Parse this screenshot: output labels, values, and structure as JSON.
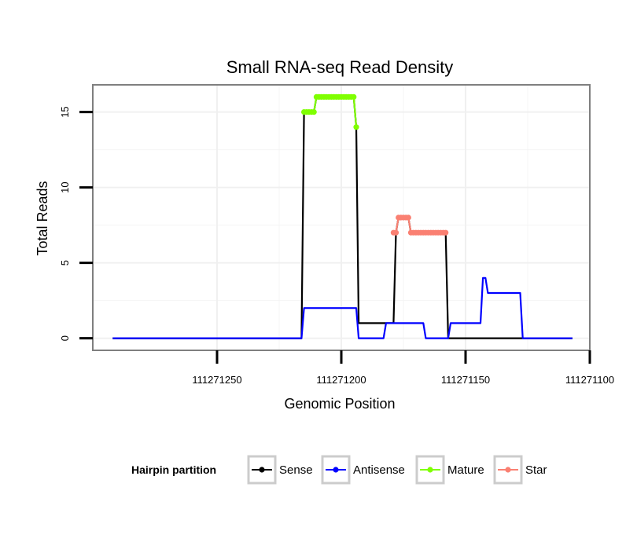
{
  "chart_data": {
    "type": "line",
    "title": "Small RNA-seq Read Density",
    "xlabel": "Genomic Position",
    "ylabel": "Total Reads",
    "x_reversed": true,
    "xlim": [
      111271300,
      111271100
    ],
    "ylim": [
      -0.8,
      16.8
    ],
    "grid": true,
    "x_ticks": [
      {
        "value": 111271250,
        "label": "111271250"
      },
      {
        "value": 111271200,
        "label": "111271200"
      },
      {
        "value": 111271150,
        "label": "111271150"
      },
      {
        "value": 111271100,
        "label": "111271100"
      }
    ],
    "y_ticks": [
      {
        "value": 0,
        "label": "0"
      },
      {
        "value": 5,
        "label": "5"
      },
      {
        "value": 10,
        "label": "10"
      },
      {
        "value": 15,
        "label": "15"
      }
    ],
    "legend": {
      "title": "Hairpin partition",
      "position": "bottom",
      "entries": [
        {
          "name": "Sense",
          "color": "#000000"
        },
        {
          "name": "Antisense",
          "color": "#0000ff"
        },
        {
          "name": "Mature",
          "color": "#7fff00"
        },
        {
          "name": "Star",
          "color": "#fa8072"
        }
      ]
    },
    "series": [
      {
        "name": "Sense",
        "color": "#000000",
        "points": [
          [
            111271292,
            0
          ],
          [
            111271216,
            0
          ],
          [
            111271215,
            15
          ],
          [
            111271211,
            15
          ],
          [
            111271210,
            16
          ],
          [
            111271195,
            16
          ],
          [
            111271194,
            14
          ],
          [
            111271193,
            1
          ],
          [
            111271179,
            1
          ],
          [
            111271178,
            7
          ],
          [
            111271177,
            8
          ],
          [
            111271173,
            8
          ],
          [
            111271172,
            7
          ],
          [
            111271158,
            7
          ],
          [
            111271157,
            0
          ],
          [
            111271133,
            0
          ],
          [
            111271133,
            0
          ],
          [
            111271134,
            0
          ],
          [
            111271134,
            0
          ],
          [
            111271133,
            0
          ],
          [
            111271133,
            0
          ],
          [
            111271133,
            0
          ],
          [
            111271133,
            0
          ],
          [
            111271133,
            0
          ],
          [
            111271133,
            0
          ],
          [
            111271133,
            0
          ],
          [
            111271133,
            0
          ],
          [
            111271133,
            0
          ],
          [
            111271133,
            0
          ],
          [
            111271133,
            0
          ],
          [
            111271133,
            0
          ],
          [
            111271133,
            0
          ],
          [
            111271133,
            0
          ],
          [
            111271107,
            0
          ]
        ]
      },
      {
        "name": "Antisense",
        "color": "#0000ff",
        "points": [
          [
            111271292,
            0
          ],
          [
            111271216,
            0
          ],
          [
            111271215,
            2
          ],
          [
            111271194,
            2
          ],
          [
            111271193,
            0
          ],
          [
            111271183,
            0
          ],
          [
            111271182,
            1
          ],
          [
            111271167,
            1
          ],
          [
            111271166,
            0
          ],
          [
            111271157,
            0
          ],
          [
            111271156,
            1
          ],
          [
            111271144,
            1
          ],
          [
            111271143,
            4
          ],
          [
            111271142,
            4
          ],
          [
            111271141,
            3
          ],
          [
            111271128,
            3
          ],
          [
            111271127,
            0
          ],
          [
            111271107,
            0
          ]
        ]
      },
      {
        "name": "Mature",
        "color": "#7fff00",
        "points": [
          [
            111271215,
            15
          ],
          [
            111271214,
            15
          ],
          [
            111271213,
            15
          ],
          [
            111271212,
            15
          ],
          [
            111271211,
            15
          ],
          [
            111271210,
            16
          ],
          [
            111271209,
            16
          ],
          [
            111271208,
            16
          ],
          [
            111271207,
            16
          ],
          [
            111271206,
            16
          ],
          [
            111271205,
            16
          ],
          [
            111271204,
            16
          ],
          [
            111271203,
            16
          ],
          [
            111271202,
            16
          ],
          [
            111271201,
            16
          ],
          [
            111271200,
            16
          ],
          [
            111271199,
            16
          ],
          [
            111271198,
            16
          ],
          [
            111271197,
            16
          ],
          [
            111271196,
            16
          ],
          [
            111271195,
            16
          ],
          [
            111271194,
            14
          ]
        ]
      },
      {
        "name": "Star",
        "color": "#fa8072",
        "points": [
          [
            111271179,
            7
          ],
          [
            111271178,
            7
          ],
          [
            111271177,
            8
          ],
          [
            111271176,
            8
          ],
          [
            111271175,
            8
          ],
          [
            111271174,
            8
          ],
          [
            111271173,
            8
          ],
          [
            111271172,
            7
          ],
          [
            111271171,
            7
          ],
          [
            111271170,
            7
          ],
          [
            111271169,
            7
          ],
          [
            111271168,
            7
          ],
          [
            111271167,
            7
          ],
          [
            111271166,
            7
          ],
          [
            111271165,
            7
          ],
          [
            111271164,
            7
          ],
          [
            111271163,
            7
          ],
          [
            111271162,
            7
          ],
          [
            111271161,
            7
          ],
          [
            111271160,
            7
          ],
          [
            111271159,
            7
          ],
          [
            111271158,
            7
          ]
        ]
      }
    ]
  }
}
